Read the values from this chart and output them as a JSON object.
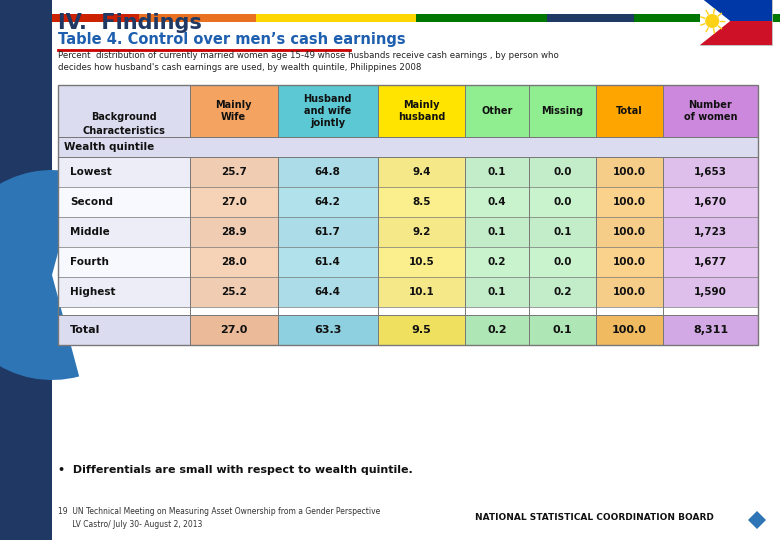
{
  "title": "IV.  Findings",
  "subtitle": "Table 4. Control over men’s cash earnings",
  "description": "Percent  distribution of currently married women age 15-49 whose husbands receive cash earnings , by person who\ndecides how husband's cash earnings are used, by wealth quintile, Philippines 2008",
  "col_headers": [
    "Mainly\nWife",
    "Husband\nand wife\njointly",
    "Mainly\nhusband",
    "Other",
    "Missing",
    "Total",
    "Number\nof women"
  ],
  "col_colors": [
    "#F4A460",
    "#5BC8D4",
    "#FFE400",
    "#90EE90",
    "#90EE90",
    "#FFA500",
    "#CC88DD"
  ],
  "row_label": "Background\nCharacteristics",
  "section_label": "Wealth quintile",
  "rows": [
    [
      "Lowest",
      "25.7",
      "64.8",
      "9.4",
      "0.1",
      "0.0",
      "100.0",
      "1,653"
    ],
    [
      "Second",
      "27.0",
      "64.2",
      "8.5",
      "0.4",
      "0.0",
      "100.0",
      "1,670"
    ],
    [
      "Middle",
      "28.9",
      "61.7",
      "9.2",
      "0.1",
      "0.1",
      "100.0",
      "1,723"
    ],
    [
      "Fourth",
      "28.0",
      "61.4",
      "10.5",
      "0.2",
      "0.0",
      "100.0",
      "1,677"
    ],
    [
      "Highest",
      "25.2",
      "64.4",
      "10.1",
      "0.1",
      "0.2",
      "100.0",
      "1,590"
    ]
  ],
  "total_row": [
    "Total",
    "27.0",
    "63.3",
    "9.5",
    "0.2",
    "0.1",
    "100.0",
    "8,311"
  ],
  "footnote": "•  Differentials are small with respect to wealth quintile.",
  "footer_left": "19  UN Technical Meeting on Measuring Asset Ownership from a Gender Perspective\n      LV Castro/ July 30- August 2, 2013",
  "footer_right": "NATIONAL STATISTICAL COORDINATION BOARD",
  "title_color": "#1F3864",
  "subtitle_color": "#1F5FAF",
  "top_stripe_colors": [
    "#CC3300",
    "#E87722",
    "#FFD700",
    "#006600",
    "#1F3864",
    "#006600"
  ],
  "sidebar_color": "#1F3864",
  "sidebar_curve_color": "#2E75B6",
  "flag_blue": "#0038A8",
  "flag_red": "#CE1126",
  "flag_sun": "#FCD116"
}
